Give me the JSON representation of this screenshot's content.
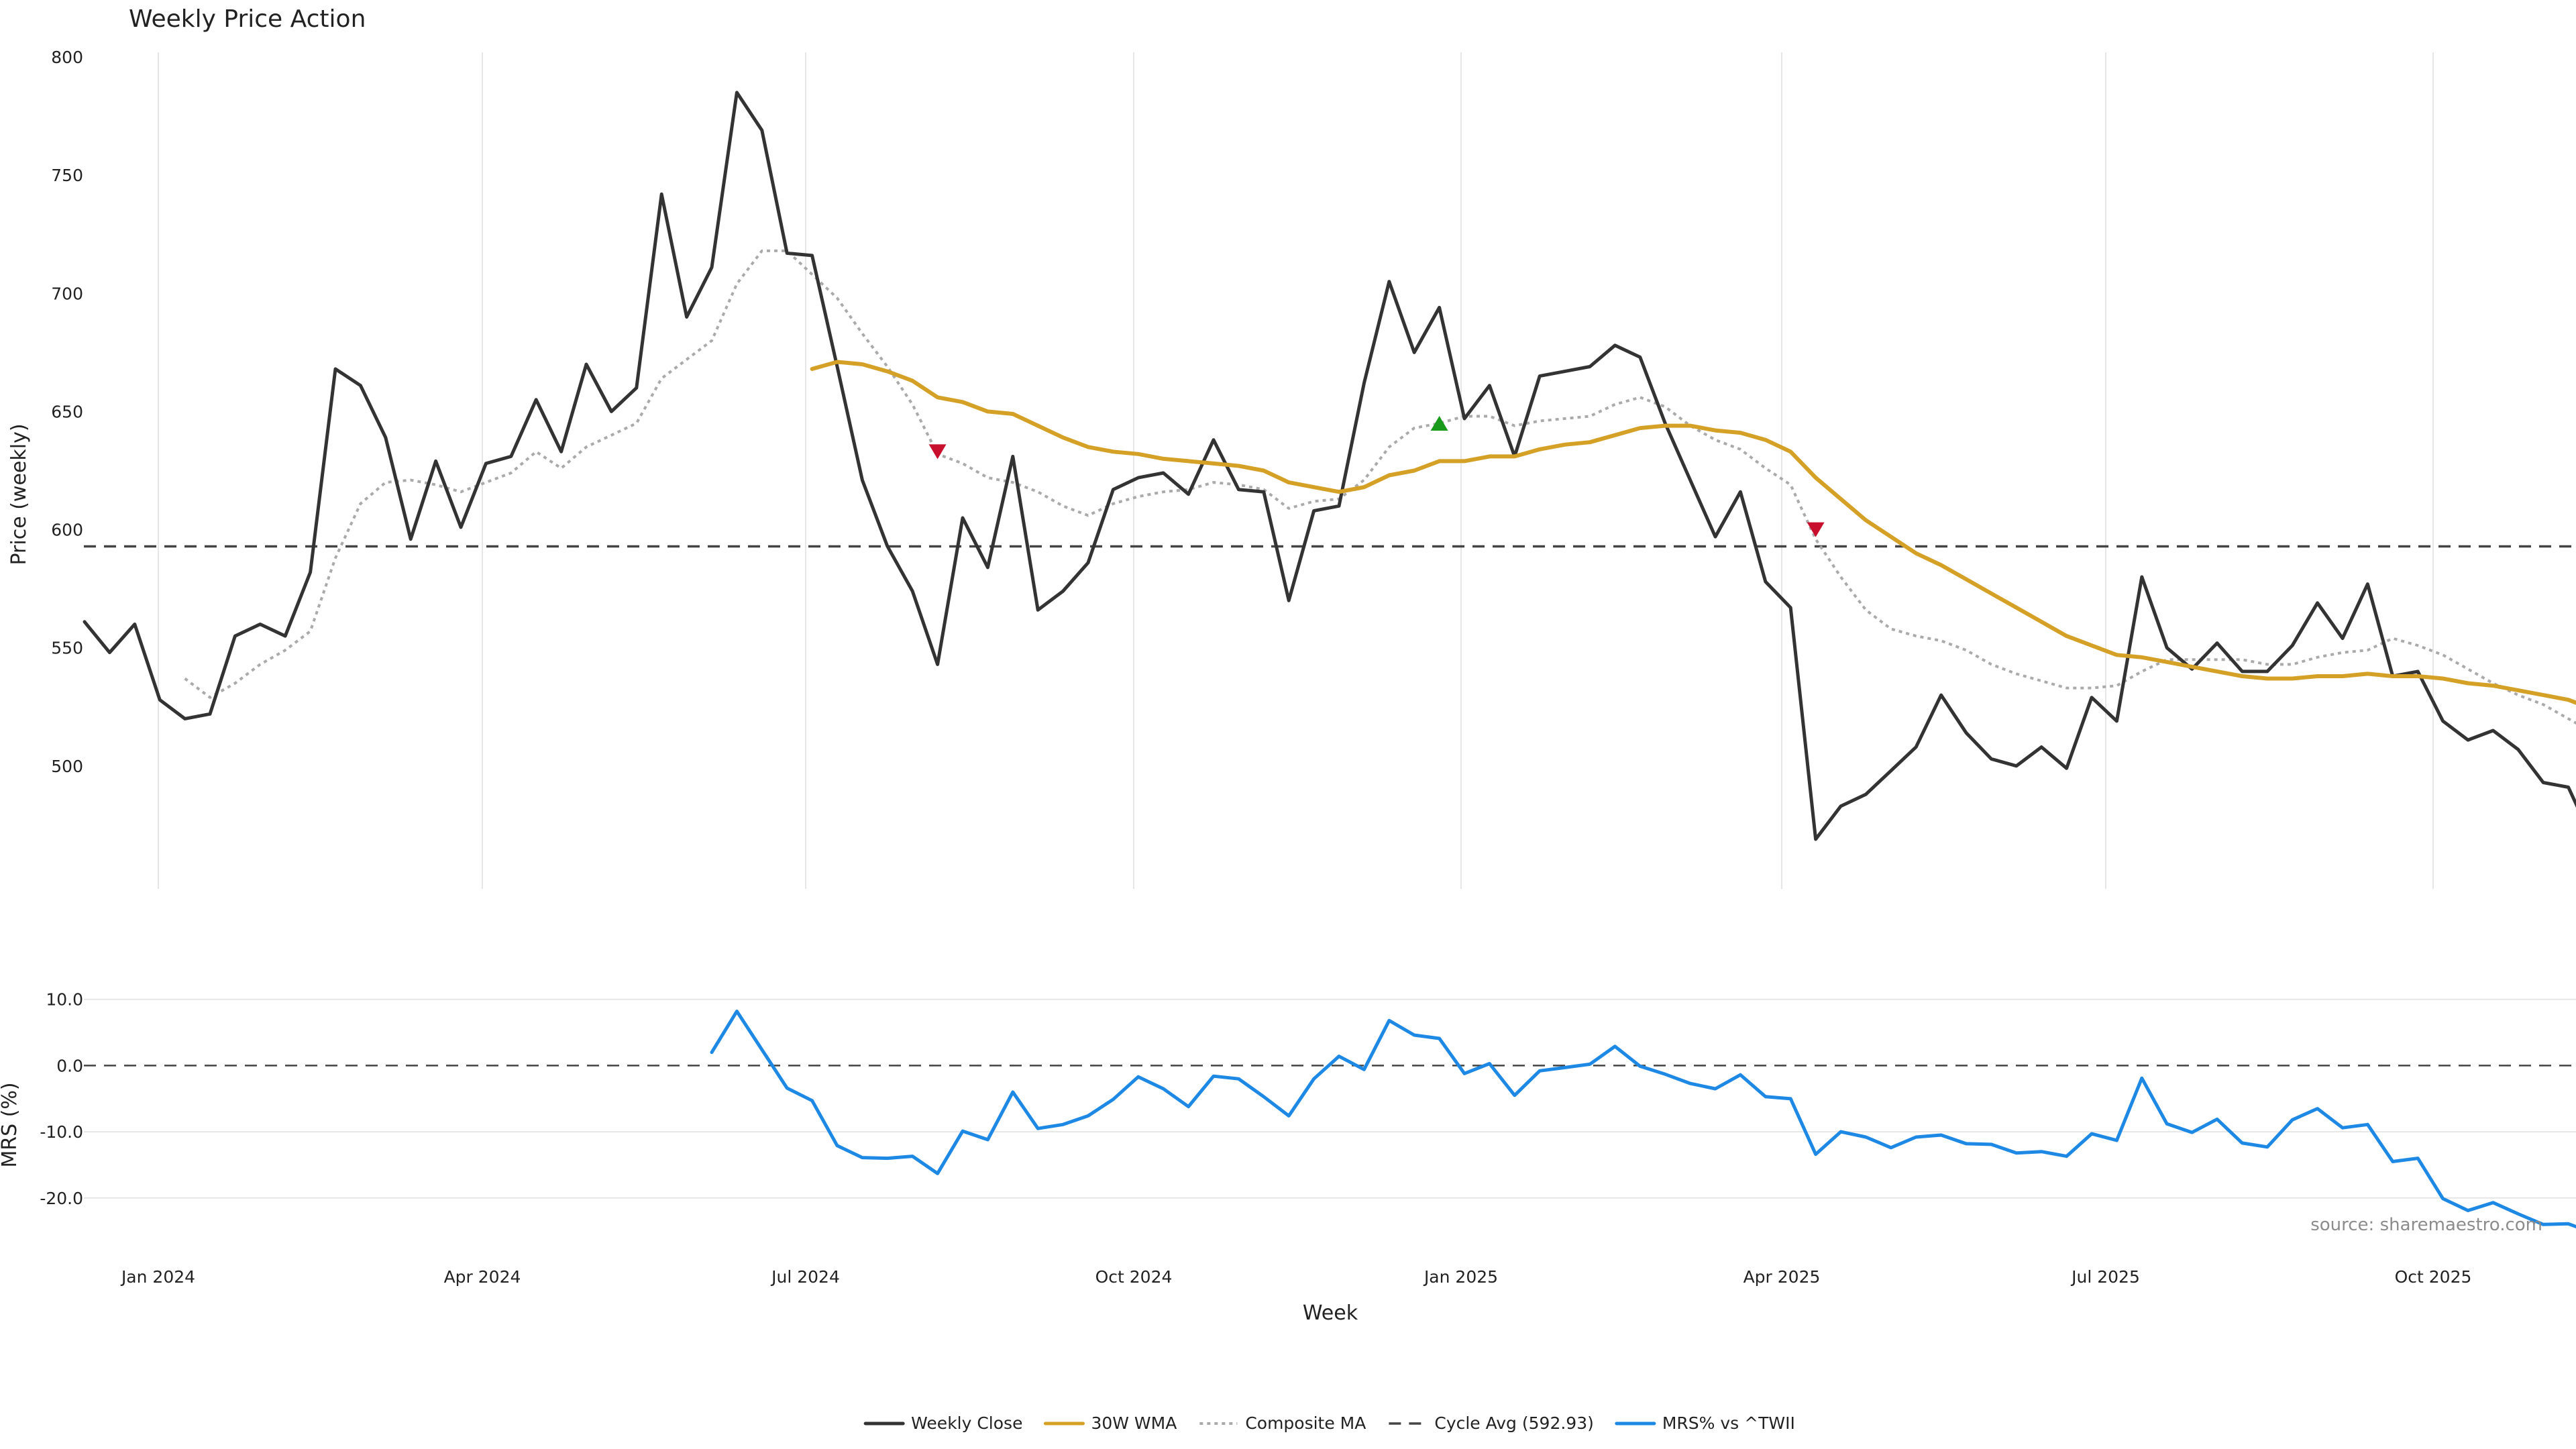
{
  "chart_data": {
    "type": "line",
    "title": "Weekly Price Action",
    "xlabel": "Week",
    "source": "source: sharemaestro.com",
    "x_tick_labels": [
      "Jan 2024",
      "Apr 2024",
      "Jul 2024",
      "Oct 2024",
      "Jan 2025",
      "Apr 2025",
      "Jul 2025",
      "Oct 2025"
    ],
    "price_panel": {
      "ylabel": "Price (weekly)",
      "ylim": [
        448,
        802
      ],
      "yticks": [
        500,
        550,
        600,
        650,
        700,
        750,
        800
      ],
      "grid": "vertical",
      "cycle_avg": 592.93,
      "series": [
        {
          "name": "Weekly Close",
          "color": "#333333",
          "style": "solid",
          "start_week": 0,
          "values": [
            561,
            548,
            560,
            528,
            520,
            522,
            555,
            560,
            555,
            582,
            668,
            661,
            639,
            596,
            629,
            601,
            628,
            631,
            655,
            633,
            670,
            650,
            660,
            742,
            690,
            711,
            785,
            769,
            717,
            716,
            669,
            621,
            593,
            574,
            543,
            605,
            584,
            631,
            566,
            574,
            586,
            617,
            622,
            624,
            615,
            638,
            617,
            616,
            570,
            608,
            610,
            662,
            705,
            675,
            694,
            647,
            661,
            631,
            665,
            667,
            669,
            678,
            673,
            645,
            621,
            597,
            616,
            578,
            567,
            469,
            483,
            488,
            498,
            508,
            530,
            514,
            503,
            500,
            508,
            499,
            529,
            519,
            580,
            550,
            541,
            552,
            540,
            540,
            551,
            569,
            554,
            577,
            538,
            540,
            519,
            511,
            515,
            507,
            493,
            491,
            468
          ]
        },
        {
          "name": "30W WMA",
          "color": "#d4a126",
          "style": "solid",
          "start_week": 29,
          "values": [
            668,
            671,
            670,
            667,
            663,
            656,
            654,
            650,
            649,
            644,
            639,
            635,
            633,
            632,
            630,
            629,
            628,
            627,
            625,
            620,
            618,
            616,
            618,
            623,
            625,
            629,
            629,
            631,
            631,
            634,
            636,
            637,
            640,
            643,
            644,
            644,
            642,
            641,
            638,
            633,
            622,
            613,
            604,
            597,
            590,
            585,
            579,
            573,
            567,
            561,
            555,
            551,
            547,
            546,
            544,
            542,
            540,
            538,
            537,
            537,
            538,
            538,
            539,
            538,
            538,
            537,
            535,
            534,
            532,
            530,
            528,
            524
          ]
        },
        {
          "name": "Composite MA",
          "color": "#aaaaaa",
          "style": "dotted",
          "start_week": 4,
          "values": [
            537,
            529,
            535,
            543,
            549,
            557,
            588,
            611,
            620,
            621,
            619,
            616,
            620,
            624,
            633,
            626,
            635,
            640,
            645,
            664,
            672,
            680,
            704,
            718,
            718,
            708,
            698,
            683,
            669,
            653,
            632,
            628,
            622,
            620,
            616,
            610,
            606,
            611,
            614,
            616,
            617,
            620,
            619,
            617,
            609,
            612,
            613,
            621,
            635,
            643,
            645,
            648,
            648,
            644,
            646,
            647,
            648,
            653,
            656,
            652,
            644,
            638,
            634,
            626,
            619,
            596,
            580,
            566,
            558,
            555,
            553,
            549,
            543,
            539,
            536,
            533,
            533,
            534,
            540,
            545,
            545,
            545,
            545,
            543,
            543,
            546,
            548,
            549,
            554,
            551,
            547,
            541,
            535,
            530,
            526,
            520,
            514
          ]
        }
      ],
      "signals": [
        {
          "type": "down",
          "color": "#c8102e",
          "week": 34,
          "value": 633
        },
        {
          "type": "up",
          "color": "#1a9a1a",
          "week": 54,
          "value": 645
        },
        {
          "type": "down",
          "color": "#c8102e",
          "week": 69,
          "value": 600
        }
      ]
    },
    "mrs_panel": {
      "ylabel": "MRS (%)",
      "ylim": [
        -26,
        12
      ],
      "yticks": [
        10.0,
        0.0,
        -10.0,
        -20.0
      ],
      "ytick_labels": [
        "10.0",
        "0.0",
        "-10.0",
        "-20.0"
      ],
      "grid": "horizontal",
      "zero_line": true,
      "series": [
        {
          "name": "MRS% vs ^TWII",
          "color": "#1e88e5",
          "style": "solid",
          "start_week": 25,
          "values": [
            2.0,
            8.2,
            2.4,
            -3.4,
            -5.3,
            -12.1,
            -13.9,
            -14.0,
            -13.7,
            -16.3,
            -9.9,
            -11.2,
            -4.0,
            -9.5,
            -8.9,
            -7.6,
            -5.1,
            -1.7,
            -3.5,
            -6.2,
            -1.6,
            -2.0,
            -4.7,
            -7.6,
            -2.0,
            1.4,
            -0.6,
            6.8,
            4.6,
            4.1,
            -1.2,
            0.3,
            -4.5,
            -0.8,
            -0.3,
            0.2,
            2.9,
            -0.1,
            -1.3,
            -2.7,
            -3.5,
            -1.4,
            -4.7,
            -5.0,
            -13.4,
            -10.0,
            -10.8,
            -12.4,
            -10.8,
            -10.5,
            -11.8,
            -11.9,
            -13.2,
            -13.0,
            -13.7,
            -10.3,
            -11.3,
            -1.9,
            -8.8,
            -10.1,
            -8.1,
            -11.7,
            -12.3,
            -8.2,
            -6.5,
            -9.4,
            -8.9,
            -14.5,
            -14.0,
            -20.1,
            -21.9,
            -20.7,
            -22.4,
            -24.0,
            -23.9,
            -25.3
          ]
        }
      ]
    },
    "legend": {
      "position": "bottom-center",
      "entries": [
        {
          "label": "Weekly Close",
          "color": "#333333",
          "style": "solid"
        },
        {
          "label": "30W WMA",
          "color": "#d4a126",
          "style": "solid"
        },
        {
          "label": "Composite MA",
          "color": "#aaaaaa",
          "style": "dotted"
        },
        {
          "label": "Cycle Avg (592.93)",
          "color": "#444444",
          "style": "dashed"
        },
        {
          "label": "MRS% vs ^TWII",
          "color": "#1e88e5",
          "style": "solid"
        }
      ]
    }
  }
}
